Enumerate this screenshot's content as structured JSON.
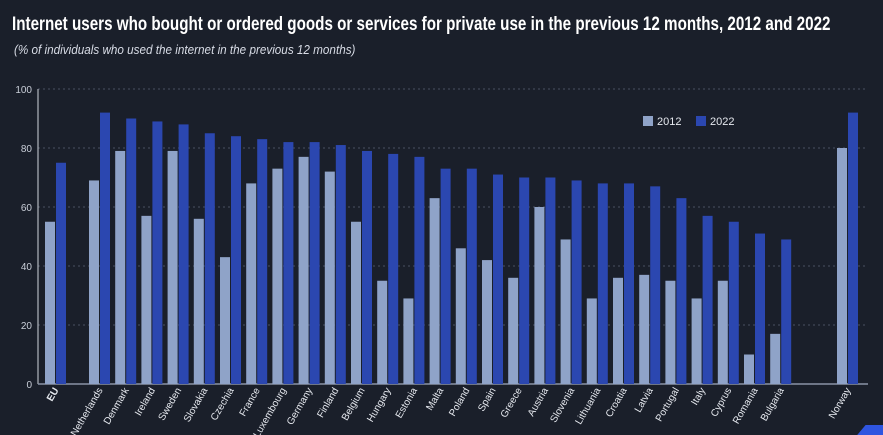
{
  "chart_data": {
    "type": "bar",
    "title": "Internet users who bought or ordered goods or services for private use in the previous 12 months, 2012 and 2022",
    "subtitle": "(% of individuals who used the internet in the previous 12 months)",
    "xlabel": "",
    "ylabel": "",
    "ylim": [
      0,
      100
    ],
    "yticks": [
      0,
      20,
      40,
      60,
      80,
      100
    ],
    "grid": true,
    "legend_position": "top-right",
    "categories": [
      "EU",
      "Netherlands",
      "Denmark",
      "Ireland",
      "Sweden",
      "Slovakia",
      "Czechia",
      "France",
      "Luxembourg",
      "Germany",
      "Finland",
      "Belgium",
      "Hungary",
      "Estonia",
      "Malta",
      "Poland",
      "Spain",
      "Greece",
      "Austria",
      "Slovenia",
      "Lithuania",
      "Croatia",
      "Latvia",
      "Portugal",
      "Italy",
      "Cyprus",
      "Romania",
      "Bulgaria",
      "Norway"
    ],
    "series": [
      {
        "name": "2012",
        "color": "#8fa3c8",
        "values": [
          55,
          69,
          79,
          57,
          79,
          56,
          43,
          68,
          73,
          77,
          72,
          55,
          35,
          29,
          63,
          46,
          42,
          36,
          60,
          49,
          29,
          36,
          37,
          35,
          29,
          35,
          10,
          17,
          80
        ]
      },
      {
        "name": "2022",
        "color": "#2b47b0",
        "values": [
          75,
          92,
          90,
          89,
          88,
          85,
          84,
          83,
          82,
          82,
          81,
          79,
          78,
          77,
          73,
          73,
          71,
          70,
          70,
          69,
          68,
          68,
          67,
          63,
          57,
          55,
          51,
          49,
          92
        ]
      }
    ]
  },
  "colors": {
    "background": "#1a1f2a",
    "grid": "#4a5263",
    "axis": "#8a93a6"
  }
}
